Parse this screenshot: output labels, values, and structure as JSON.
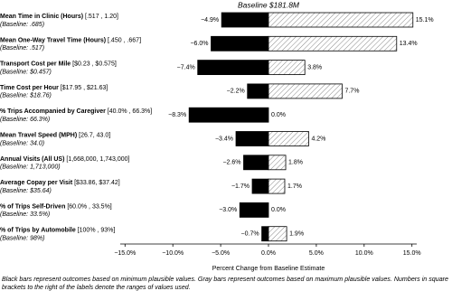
{
  "chart_data": {
    "type": "tornado",
    "title": "Baseline $181.8M",
    "categories": [
      "Mean Time in Clinic (Hours)",
      "Mean One-Way Travel Time (Hours)",
      "Transport Cost per Mile",
      "Time Cost per Hour",
      "% Trips Accompanied by Caregiver",
      "Mean Travel Speed (MPH)",
      "Annual Visits (All US)",
      "Average Copay per Visit",
      "% of Trips Self-Driven",
      "% of Trips by Automobile"
    ],
    "ranges": [
      "[.517 , 1.20]",
      "[.450 , .667]",
      "[$0.23 , $0.575]",
      "[$17.95 , $21.63]",
      "[40.0% , 66.3%]",
      "[26.7, 43.0]",
      "[1,668,000, 1,743,000]",
      "[$33.86, $37.42]",
      "[60.0% , 33.5%]",
      "[100% , 93%]"
    ],
    "baselines": [
      "(Baseline: .685)",
      "(Baseline: .517)",
      "(Baseline: $0.457)",
      "(Baseline: $18.76)",
      "(Baseline: 66.3%)",
      "(Baseline: 34.0)",
      "(Baseline: 1,713,000)",
      "(Baseline: $35.64)",
      "(Baseline: 33.5%)",
      "(Baseline: 98%)"
    ],
    "series": [
      {
        "color": "#000000",
        "hatch": false,
        "values": [
          -4.9,
          -6.0,
          -7.4,
          -2.2,
          -8.3,
          -3.4,
          -2.6,
          -1.7,
          -3.0,
          -0.7
        ],
        "value_labels": [
          "−4.9%",
          "−6.0%",
          "−7.4%",
          "−2.2%",
          "−8.3%",
          "−3.4%",
          "−2.6%",
          "−1.7%",
          "−3.0%",
          "−0.7%"
        ]
      },
      {
        "color": "#888888",
        "hatch": true,
        "values": [
          15.1,
          13.4,
          3.8,
          7.7,
          0.0,
          4.2,
          1.8,
          1.7,
          0.0,
          1.9
        ],
        "value_labels": [
          "15.1%",
          "13.4%",
          "3.8%",
          "7.7%",
          "0.0%",
          "4.2%",
          "1.8%",
          "1.7%",
          "0.0%",
          "1.9%"
        ]
      }
    ],
    "xlim": [
      -15.5,
      15.5
    ],
    "xticks": [
      {
        "value": -15,
        "label": "−15.0%"
      },
      {
        "value": -10,
        "label": "−10.0%"
      },
      {
        "value": -5,
        "label": "−5.0%"
      },
      {
        "value": 0,
        "label": "0.0%"
      },
      {
        "value": 5,
        "label": "5.0%"
      },
      {
        "value": 10,
        "label": "10.0%"
      },
      {
        "value": 15,
        "label": "15.0%"
      }
    ],
    "x_label": "Percent Change from Baseline Estimate",
    "footnote": [
      "Black bars represent outcomes based on minimum plausible values. Gray bars represent outcomes based on maximum plausible values. Numbers in square",
      "brackets to the right of the labels denote the ranges of values used."
    ]
  }
}
